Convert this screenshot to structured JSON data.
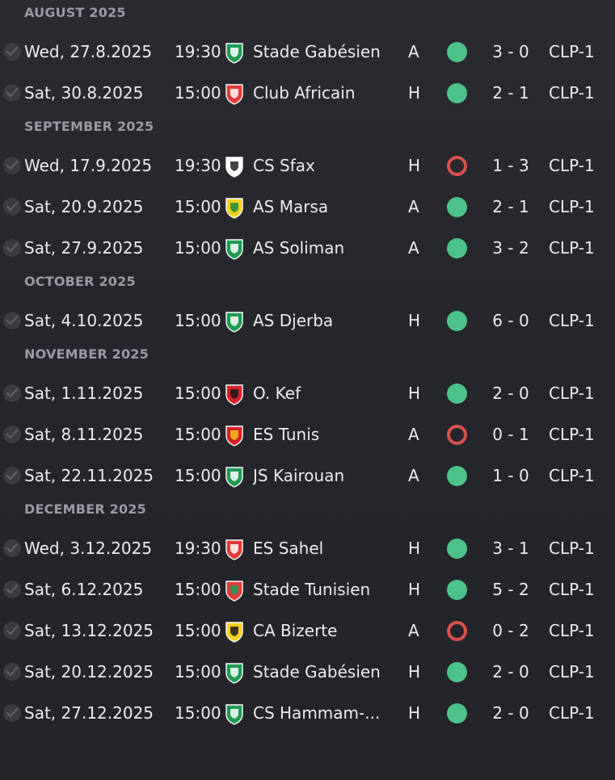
{
  "months": [
    {
      "label": "AUGUST 2025",
      "matches": [
        {
          "date": "Wed, 27.8.2025",
          "time": "19:30",
          "team": "Stade Gabésien",
          "venue": "A",
          "outcome": "win",
          "score": "3 - 0",
          "competition": "CLP-1",
          "badge_colors": [
            "#1e9a55",
            "#ffffff"
          ]
        },
        {
          "date": "Sat, 30.8.2025",
          "time": "15:00",
          "team": "Club Africain",
          "venue": "H",
          "outcome": "win",
          "score": "2 - 1",
          "competition": "CLP-1",
          "badge_colors": [
            "#e03a3a",
            "#ffffff"
          ]
        }
      ]
    },
    {
      "label": "SEPTEMBER 2025",
      "matches": [
        {
          "date": "Wed, 17.9.2025",
          "time": "19:30",
          "team": "CS Sfax",
          "venue": "H",
          "outcome": "loss",
          "score": "1 - 3",
          "competition": "CLP-1",
          "badge_colors": [
            "#ffffff",
            "#222222"
          ]
        },
        {
          "date": "Sat, 20.9.2025",
          "time": "15:00",
          "team": "AS Marsa",
          "venue": "A",
          "outcome": "win",
          "score": "2 - 1",
          "competition": "CLP-1",
          "badge_colors": [
            "#f3d21c",
            "#1e8a3c"
          ]
        },
        {
          "date": "Sat, 27.9.2025",
          "time": "15:00",
          "team": "AS Soliman",
          "venue": "A",
          "outcome": "win",
          "score": "3 - 2",
          "competition": "CLP-1",
          "badge_colors": [
            "#1e9a55",
            "#ffffff"
          ]
        }
      ]
    },
    {
      "label": "OCTOBER 2025",
      "matches": [
        {
          "date": "Sat, 4.10.2025",
          "time": "15:00",
          "team": "AS Djerba",
          "venue": "H",
          "outcome": "win",
          "score": "6 - 0",
          "competition": "CLP-1",
          "badge_colors": [
            "#1e9a55",
            "#ffffff"
          ]
        }
      ]
    },
    {
      "label": "NOVEMBER 2025",
      "matches": [
        {
          "date": "Sat, 1.11.2025",
          "time": "15:00",
          "team": "O. Kef",
          "venue": "H",
          "outcome": "win",
          "score": "2 - 0",
          "competition": "CLP-1",
          "badge_colors": [
            "#d8202a",
            "#1a1a1a"
          ]
        },
        {
          "date": "Sat, 8.11.2025",
          "time": "15:00",
          "team": "ES Tunis",
          "venue": "A",
          "outcome": "loss",
          "score": "0 - 1",
          "competition": "CLP-1",
          "badge_colors": [
            "#d8202a",
            "#f3c417"
          ]
        },
        {
          "date": "Sat, 22.11.2025",
          "time": "15:00",
          "team": "JS Kairouan",
          "venue": "A",
          "outcome": "win",
          "score": "1 - 0",
          "competition": "CLP-1",
          "badge_colors": [
            "#1e9a55",
            "#ffffff"
          ]
        }
      ]
    },
    {
      "label": "DECEMBER 2025",
      "matches": [
        {
          "date": "Wed, 3.12.2025",
          "time": "19:30",
          "team": "ES Sahel",
          "venue": "H",
          "outcome": "win",
          "score": "3 - 1",
          "competition": "CLP-1",
          "badge_colors": [
            "#e03a3a",
            "#ffffff"
          ]
        },
        {
          "date": "Sat, 6.12.2025",
          "time": "15:00",
          "team": "Stade Tunisien",
          "venue": "H",
          "outcome": "win",
          "score": "5 - 2",
          "competition": "CLP-1",
          "badge_colors": [
            "#e03a3a",
            "#1e9a55"
          ]
        },
        {
          "date": "Sat, 13.12.2025",
          "time": "15:00",
          "team": "CA Bizerte",
          "venue": "A",
          "outcome": "loss",
          "score": "0 - 2",
          "competition": "CLP-1",
          "badge_colors": [
            "#f3d21c",
            "#1a1a1a"
          ]
        },
        {
          "date": "Sat, 20.12.2025",
          "time": "15:00",
          "team": "Stade Gabésien",
          "venue": "H",
          "outcome": "win",
          "score": "2 - 0",
          "competition": "CLP-1",
          "badge_colors": [
            "#1e9a55",
            "#ffffff"
          ]
        },
        {
          "date": "Sat, 27.12.2025",
          "time": "15:00",
          "team": "CS Hammam-...",
          "venue": "H",
          "outcome": "win",
          "score": "2 - 0",
          "competition": "CLP-1",
          "badge_colors": [
            "#1e9a55",
            "#ffffff"
          ]
        }
      ]
    }
  ],
  "icons": {
    "played": "check-icon",
    "win": "win-dot-icon",
    "loss": "loss-ring-icon"
  },
  "colors": {
    "win": "#4cc28a",
    "loss": "#d9504f",
    "header": "#9a9ba3",
    "background": "#26272c"
  }
}
